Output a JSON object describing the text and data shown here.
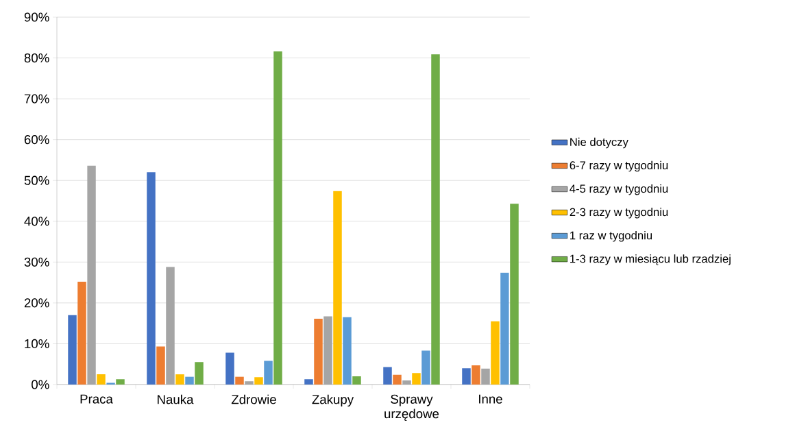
{
  "chart_data": {
    "type": "bar",
    "categories": [
      "Praca",
      "Nauka",
      "Zdrowie",
      "Zakupy",
      "Sprawy urzędowe",
      "Inne"
    ],
    "series": [
      {
        "name": "Nie dotyczy",
        "color": "#4472c4",
        "values": [
          17.0,
          52.0,
          7.8,
          1.3,
          4.3,
          4.0
        ]
      },
      {
        "name": "6-7 razy w tygodniu",
        "color": "#ed7d31",
        "values": [
          25.2,
          9.3,
          1.9,
          16.1,
          2.4,
          4.7
        ]
      },
      {
        "name": "4-5 razy w tygodniu",
        "color": "#a5a5a5",
        "values": [
          53.6,
          28.8,
          0.8,
          16.7,
          1.0,
          3.9
        ]
      },
      {
        "name": "2-3 razy w tygodniu",
        "color": "#ffc000",
        "values": [
          2.5,
          2.5,
          1.8,
          47.4,
          2.8,
          15.5
        ]
      },
      {
        "name": "1 raz w tygodniu",
        "color": "#5b9bd5",
        "values": [
          0.4,
          1.9,
          5.8,
          16.5,
          8.3,
          27.4
        ]
      },
      {
        "name": "1-3 razy w miesiącu lub rzadziej",
        "color": "#70ad47",
        "values": [
          1.3,
          5.5,
          81.6,
          2.0,
          80.9,
          44.3
        ]
      }
    ],
    "ylim": [
      0,
      90
    ],
    "yticks": [
      {
        "value": 0,
        "label": "0%"
      },
      {
        "value": 10,
        "label": "10%"
      },
      {
        "value": 20,
        "label": "20%"
      },
      {
        "value": 30,
        "label": "30%"
      },
      {
        "value": 40,
        "label": "40%"
      },
      {
        "value": 50,
        "label": "50%"
      },
      {
        "value": 60,
        "label": "60%"
      },
      {
        "value": 70,
        "label": "70%"
      },
      {
        "value": 80,
        "label": "80%"
      },
      {
        "value": 90,
        "label": "90%"
      }
    ],
    "grid": "y",
    "legend": "right"
  }
}
